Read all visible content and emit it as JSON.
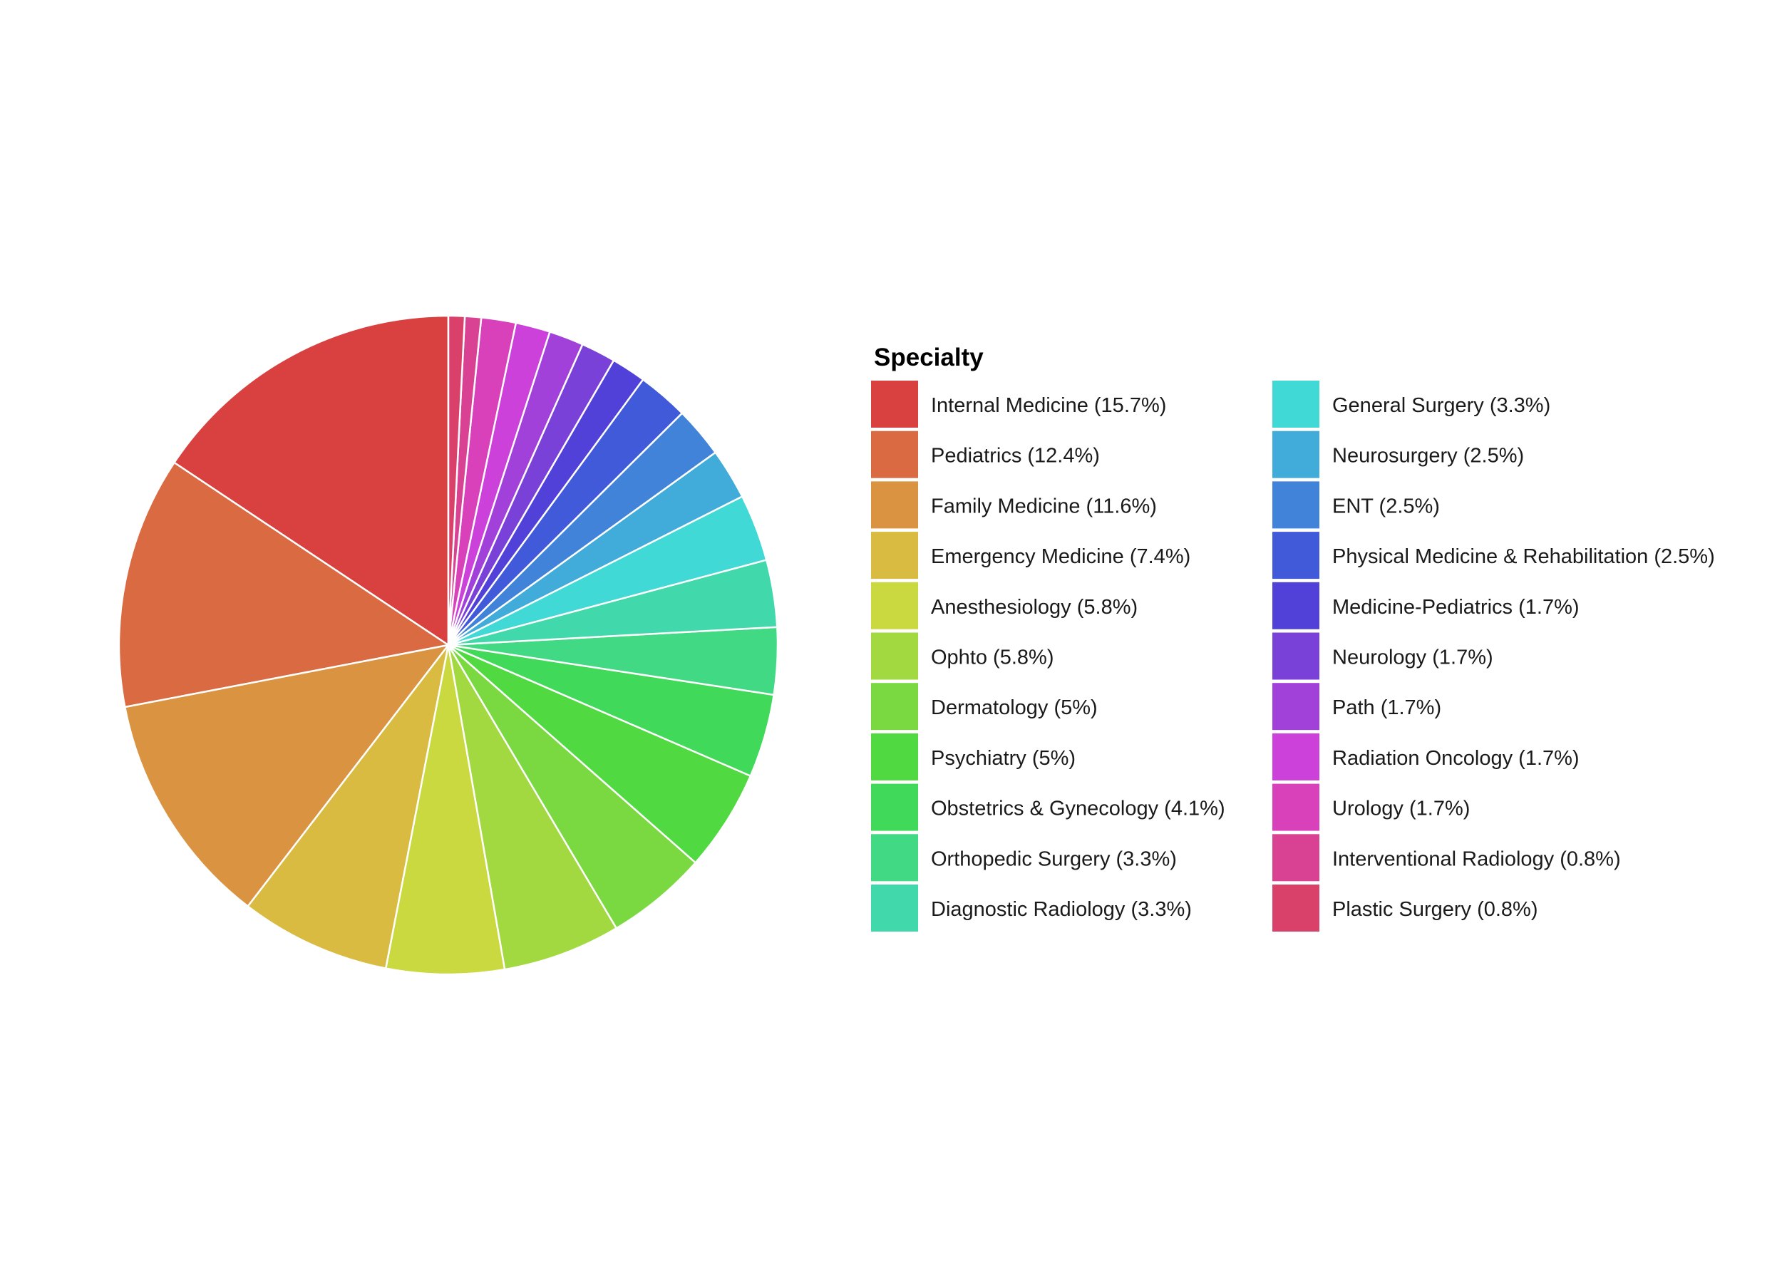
{
  "chart_data": {
    "type": "pie",
    "legend_title": "Specialty",
    "legend_position": "right",
    "slices": [
      {
        "label": "Internal Medicine (15.7%)",
        "value": 15.7,
        "color": "#d94141"
      },
      {
        "label": "Pediatrics (12.4%)",
        "value": 12.4,
        "color": "#d96a41"
      },
      {
        "label": "Family Medicine (11.6%)",
        "value": 11.6,
        "color": "#d99341"
      },
      {
        "label": "Emergency Medicine (7.4%)",
        "value": 7.4,
        "color": "#d9bb41"
      },
      {
        "label": "Anesthesiology (5.8%)",
        "value": 5.8,
        "color": "#cbd941"
      },
      {
        "label": "Ophto (5.8%)",
        "value": 5.8,
        "color": "#a2d941"
      },
      {
        "label": "Dermatology (5%)",
        "value": 5.0,
        "color": "#7ad941"
      },
      {
        "label": "Psychiatry (5%)",
        "value": 5.0,
        "color": "#51d941"
      },
      {
        "label": "Obstetrics & Gynecology (4.1%)",
        "value": 4.1,
        "color": "#41d95a"
      },
      {
        "label": "Orthopedic Surgery (3.3%)",
        "value": 3.3,
        "color": "#41d983"
      },
      {
        "label": "Diagnostic Radiology (3.3%)",
        "value": 3.3,
        "color": "#41d9ac"
      },
      {
        "label": "General Surgery (3.3%)",
        "value": 3.3,
        "color": "#41d9d5"
      },
      {
        "label": "Neurosurgery (2.5%)",
        "value": 2.5,
        "color": "#41acd9"
      },
      {
        "label": "ENT (2.5%)",
        "value": 2.5,
        "color": "#4183d9"
      },
      {
        "label": "Physical Medicine & Rehabilitation (2.5%)",
        "value": 2.5,
        "color": "#415ad9"
      },
      {
        "label": "Medicine-Pediatrics (1.7%)",
        "value": 1.7,
        "color": "#5141d9"
      },
      {
        "label": "Neurology (1.7%)",
        "value": 1.7,
        "color": "#7a41d9"
      },
      {
        "label": "Path (1.7%)",
        "value": 1.7,
        "color": "#a241d9"
      },
      {
        "label": "Radiation Oncology (1.7%)",
        "value": 1.7,
        "color": "#cb41d9"
      },
      {
        "label": "Urology (1.7%)",
        "value": 1.7,
        "color": "#d941bb"
      },
      {
        "label": "Interventional Radiology (0.8%)",
        "value": 0.8,
        "color": "#d94193"
      },
      {
        "label": "Plastic Surgery (0.8%)",
        "value": 0.8,
        "color": "#d9416a"
      }
    ]
  }
}
